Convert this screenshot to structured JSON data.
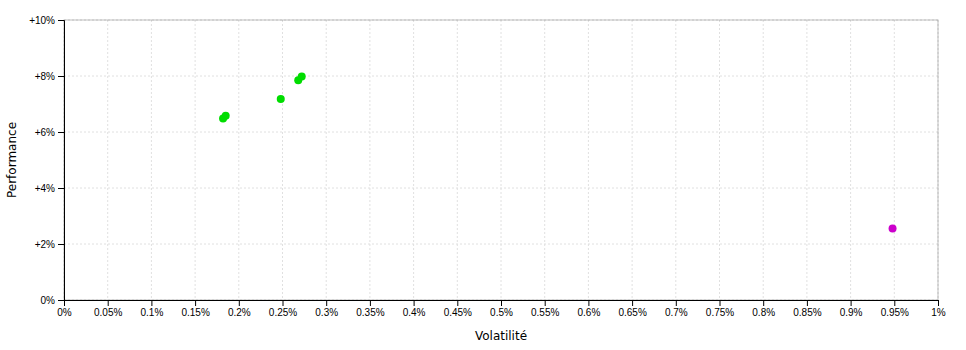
{
  "chart_data": {
    "type": "scatter",
    "x_label": "Volatilité",
    "y_label": "Performance",
    "xlim": [
      0.0,
      0.01
    ],
    "ylim": [
      0.0,
      0.1
    ],
    "xticks": [
      {
        "value": 0.0,
        "label": "0%"
      },
      {
        "value": 0.0005,
        "label": "0.05%"
      },
      {
        "value": 0.001,
        "label": "0.1%"
      },
      {
        "value": 0.0015,
        "label": "0.15%"
      },
      {
        "value": 0.002,
        "label": "0.2%"
      },
      {
        "value": 0.0025,
        "label": "0.25%"
      },
      {
        "value": 0.003,
        "label": "0.3%"
      },
      {
        "value": 0.0035,
        "label": "0.35%"
      },
      {
        "value": 0.004,
        "label": "0.4%"
      },
      {
        "value": 0.0045,
        "label": "0.45%"
      },
      {
        "value": 0.005,
        "label": "0.5%"
      },
      {
        "value": 0.0055,
        "label": "0.55%"
      },
      {
        "value": 0.006,
        "label": "0.6%"
      },
      {
        "value": 0.0065,
        "label": "0.65%"
      },
      {
        "value": 0.007,
        "label": "0.7%"
      },
      {
        "value": 0.0075,
        "label": "0.75%"
      },
      {
        "value": 0.008,
        "label": "0.8%"
      },
      {
        "value": 0.0085,
        "label": "0.85%"
      },
      {
        "value": 0.009,
        "label": "0.9%"
      },
      {
        "value": 0.0095,
        "label": "0.95%"
      },
      {
        "value": 0.01,
        "label": "1%"
      }
    ],
    "yticks": [
      {
        "value": 0.0,
        "label": "0%"
      },
      {
        "value": 0.02,
        "label": "+2%"
      },
      {
        "value": 0.04,
        "label": "+4%"
      },
      {
        "value": 0.06,
        "label": "+6%"
      },
      {
        "value": 0.08,
        "label": "+8%"
      },
      {
        "value": 0.1,
        "label": "+10%"
      }
    ],
    "grid": true,
    "series": [
      {
        "color": "#00dd00",
        "x": [
          0.00182,
          0.00185,
          0.00248,
          0.00268,
          0.00272
        ],
        "values": [
          0.0648,
          0.0658,
          0.0718,
          0.0785,
          0.0798
        ]
      },
      {
        "color": "#cc00cc",
        "x": [
          0.00948
        ],
        "values": [
          0.0255
        ]
      }
    ]
  }
}
